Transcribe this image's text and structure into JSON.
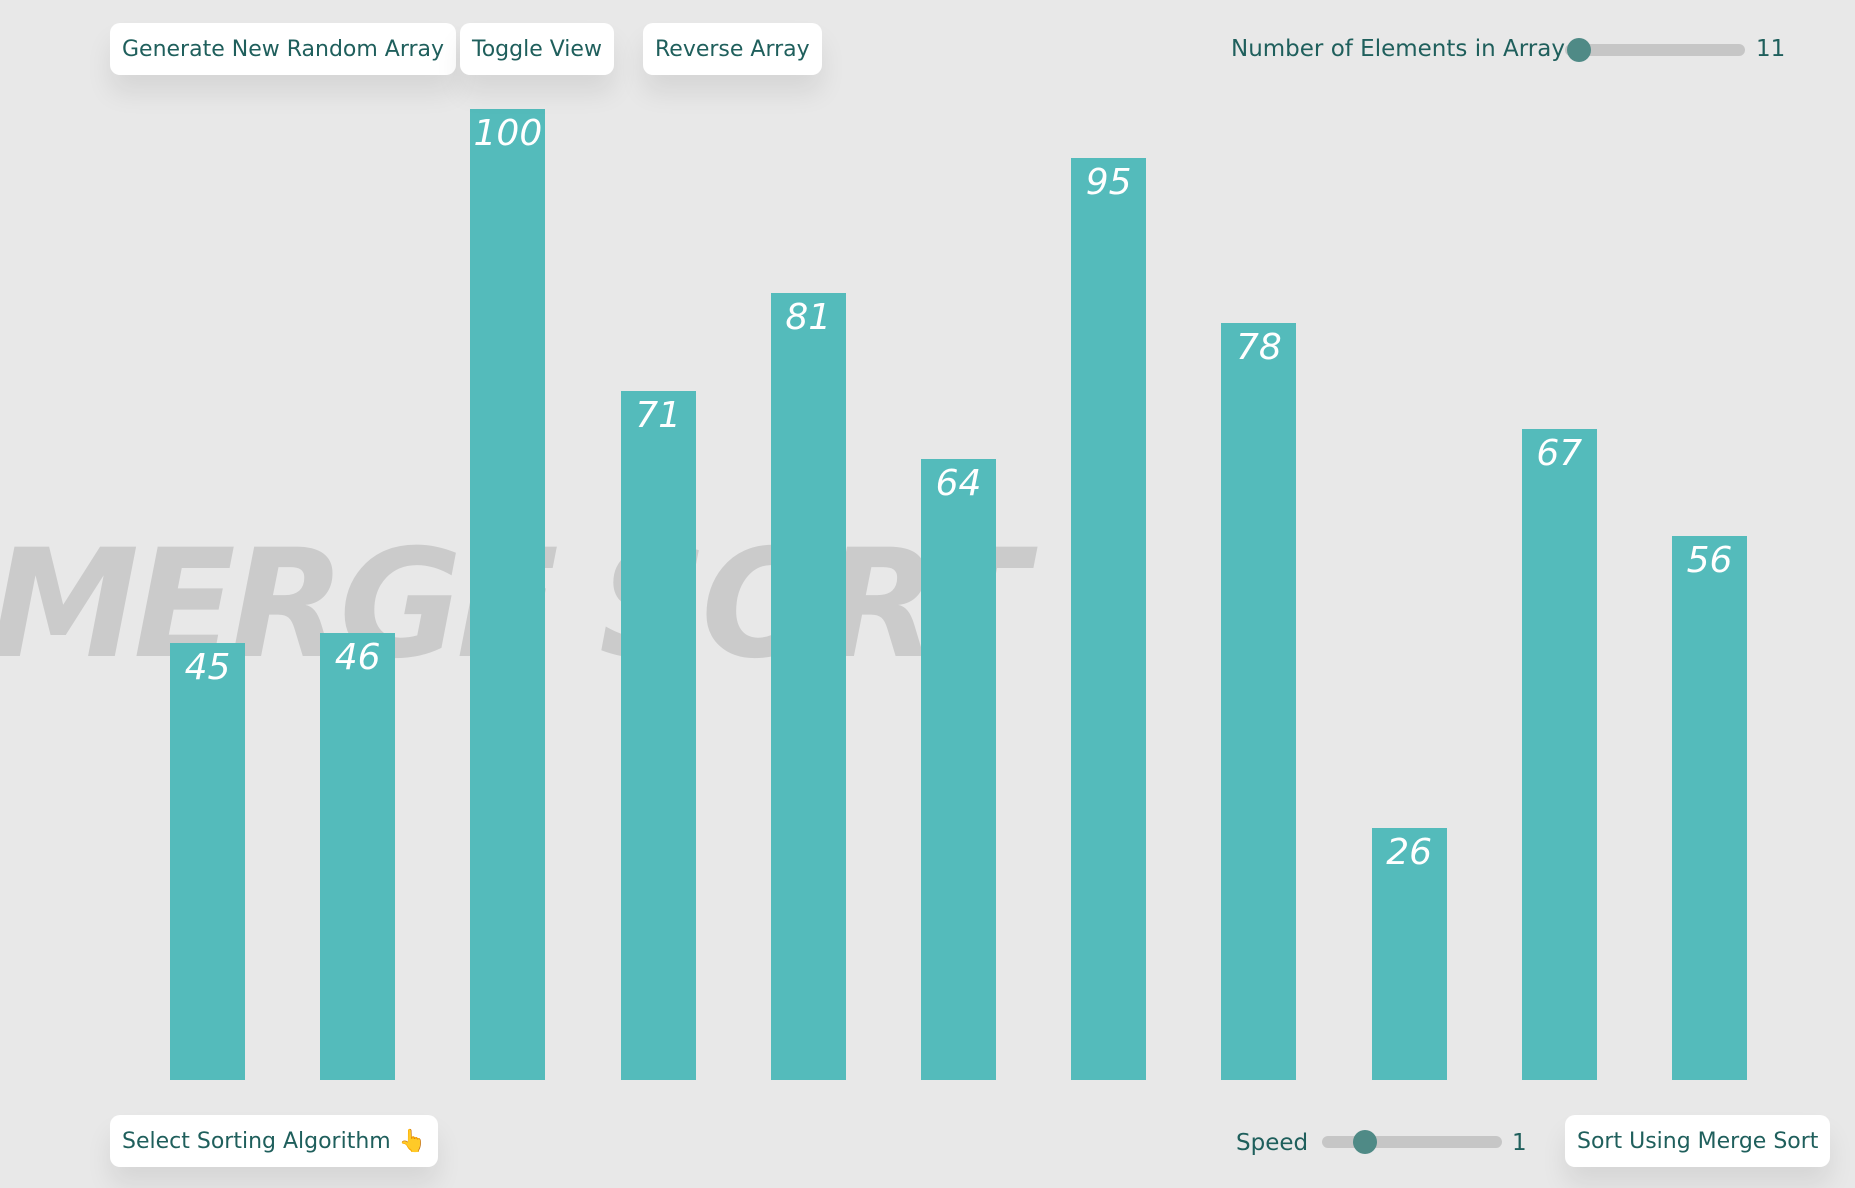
{
  "toolbar": {
    "generate_label": "Generate New Random Array",
    "toggle_label": "Toggle View",
    "reverse_label": "Reverse Array",
    "elements_label": "Number of Elements in Array",
    "elements_value": "11",
    "elements_slider_fraction": 0.08
  },
  "bottom": {
    "select_label": "Select Sorting Algorithm",
    "select_icon": "pointing-hand-icon",
    "speed_label": "Speed",
    "speed_value": "1",
    "speed_slider_fraction": 0.24,
    "sort_label": "Sort Using Merge Sort"
  },
  "watermark": "MERGE SORT",
  "colors": {
    "bar": "#54bbbb",
    "background": "#e8e8e8",
    "text": "#1f5f5c",
    "thumb": "#4f8a86"
  },
  "chart_data": {
    "type": "bar",
    "categories": [
      "",
      "",
      "",
      "",
      "",
      "",
      "",
      "",
      "",
      "",
      ""
    ],
    "values": [
      45,
      46,
      100,
      71,
      81,
      64,
      95,
      78,
      26,
      67,
      56
    ],
    "ylim": [
      0,
      100
    ]
  }
}
